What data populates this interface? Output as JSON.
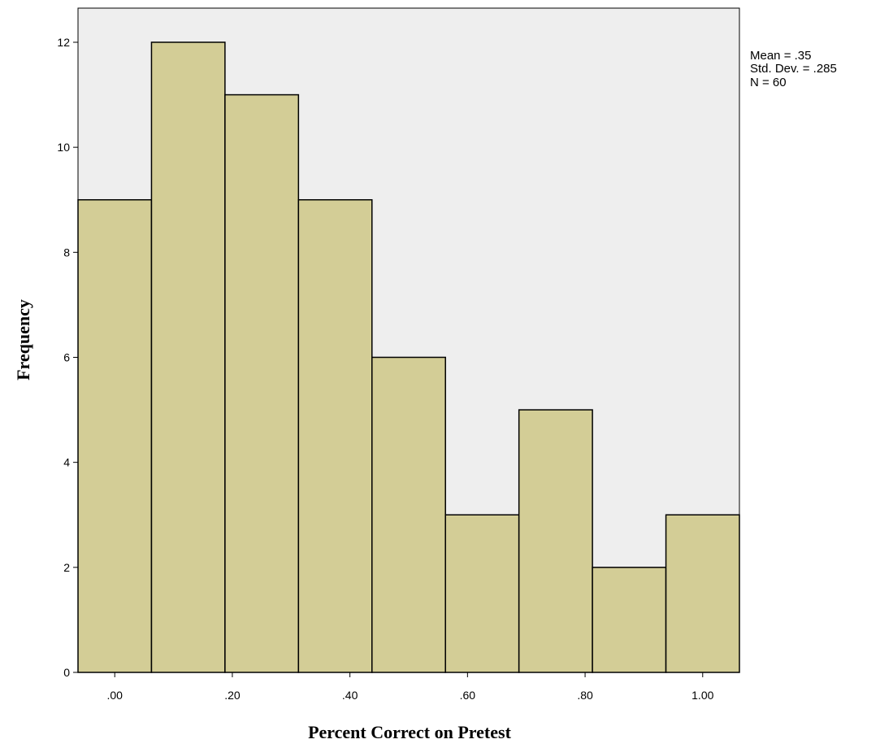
{
  "chart_data": {
    "type": "bar",
    "histogram": true,
    "xlabel": "Percent Correct on Pretest",
    "ylabel": "Frequency",
    "bins": [
      {
        "start": -0.0625,
        "end": 0.0625,
        "count": 9
      },
      {
        "start": 0.0625,
        "end": 0.1875,
        "count": 12
      },
      {
        "start": 0.1875,
        "end": 0.3125,
        "count": 11
      },
      {
        "start": 0.3125,
        "end": 0.4375,
        "count": 9
      },
      {
        "start": 0.4375,
        "end": 0.5625,
        "count": 6
      },
      {
        "start": 0.5625,
        "end": 0.6875,
        "count": 3
      },
      {
        "start": 0.6875,
        "end": 0.8125,
        "count": 5
      },
      {
        "start": 0.8125,
        "end": 0.9375,
        "count": 2
      },
      {
        "start": 0.9375,
        "end": 1.0625,
        "count": 3
      }
    ],
    "xlim": [
      -0.0625,
      1.0625
    ],
    "ylim": [
      0,
      12.65
    ],
    "x_ticks": [
      {
        "value": 0.0,
        "label": ".00"
      },
      {
        "value": 0.2,
        "label": ".20"
      },
      {
        "value": 0.4,
        "label": ".40"
      },
      {
        "value": 0.6,
        "label": ".60"
      },
      {
        "value": 0.8,
        "label": ".80"
      },
      {
        "value": 1.0,
        "label": "1.00"
      }
    ],
    "y_ticks": [
      {
        "value": 0,
        "label": "0"
      },
      {
        "value": 2,
        "label": "2"
      },
      {
        "value": 4,
        "label": "4"
      },
      {
        "value": 6,
        "label": "6"
      },
      {
        "value": 8,
        "label": "8"
      },
      {
        "value": 10,
        "label": "10"
      },
      {
        "value": 12,
        "label": "12"
      }
    ],
    "stats": {
      "mean": "Mean = .35",
      "std_dev": "Std. Dev. = .285",
      "n": "N = 60"
    },
    "grid": false,
    "legend": "none",
    "colors": {
      "plot_background": "#eeeeee",
      "bar_fill": "#d3cd96",
      "bar_stroke": "#000000"
    }
  }
}
